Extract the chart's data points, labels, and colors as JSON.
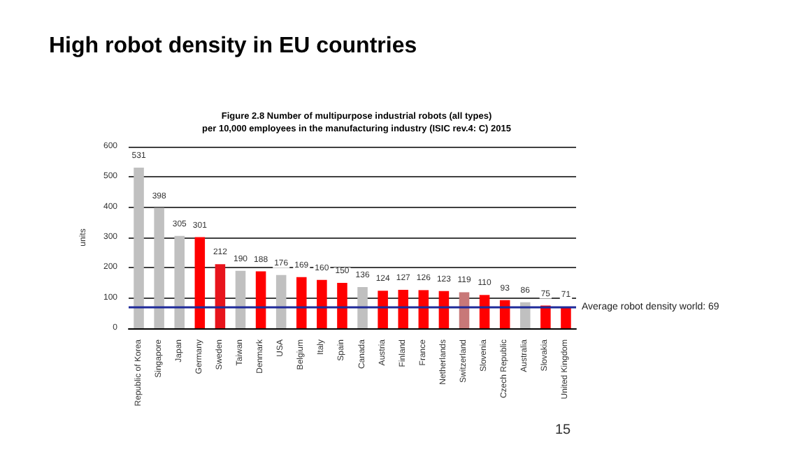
{
  "chart_data": {
    "type": "bar",
    "title": "High robot density in EU countries",
    "subtitle": "Figure 2.8 Number of multipurpose industrial robots (all types)\nper 10,000 employees in the manufacturing industry (ISIC rev.4: C) 2015",
    "ylabel": "units",
    "categories": [
      "Republic of Korea",
      "Singapore",
      "Japan",
      "Germany",
      "Sweden",
      "Taiwan",
      "Denmark",
      "USA",
      "Belgium",
      "Italy",
      "Spain",
      "Canada",
      "Austria",
      "Finland",
      "France",
      "Netherlands",
      "Switzerland",
      "Slovenia",
      "Czech Republic",
      "Australia",
      "Slovakia",
      "United Kingdom"
    ],
    "values": [
      531,
      398,
      305,
      301,
      212,
      190,
      188,
      176,
      169,
      160,
      150,
      136,
      124,
      127,
      126,
      123,
      119,
      110,
      93,
      86,
      75,
      71
    ],
    "colors": [
      "#c0c0c0",
      "#c0c0c0",
      "#c0c0c0",
      "#ff0000",
      "#e8141c",
      "#c0c0c0",
      "#ff0000",
      "#c0c0c0",
      "#ff0000",
      "#ff0000",
      "#ff0000",
      "#c0c0c0",
      "#ff0000",
      "#ff0000",
      "#ff0000",
      "#ff0000",
      "#c87878",
      "#ff0000",
      "#ff0000",
      "#c0c0c0",
      "#ff0000",
      "#ff0000"
    ],
    "data_labels": true,
    "ylim": [
      0,
      600
    ],
    "yticks": [
      0,
      100,
      200,
      300,
      400,
      500,
      600
    ],
    "grid": "y",
    "ref_lines": [
      {
        "axis": "y",
        "value": 69,
        "label": "Average robot density world: 69",
        "color": "#1f2a9a"
      }
    ],
    "annotations": [
      "15"
    ]
  }
}
